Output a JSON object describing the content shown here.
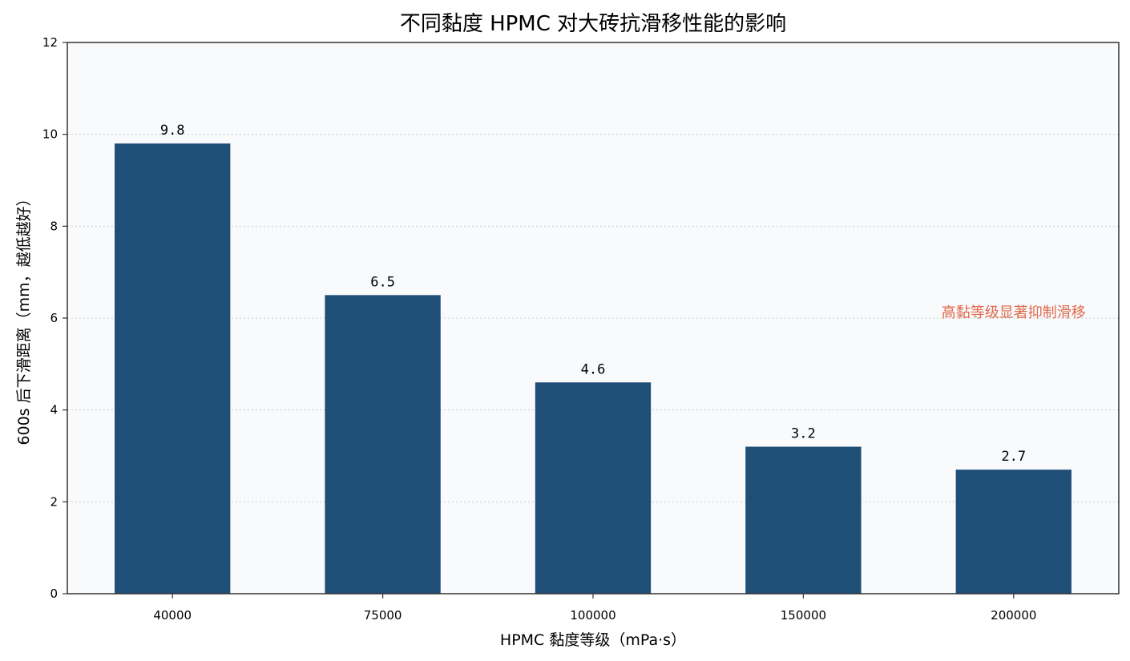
{
  "chart_data": {
    "type": "bar",
    "title": "不同黏度 HPMC 对大砖抗滑移性能的影响",
    "xlabel": "HPMC 黏度等级（mPa·s）",
    "ylabel": "600s 后下滑距离（mm，越低越好）",
    "categories": [
      "40000",
      "75000",
      "100000",
      "150000",
      "200000"
    ],
    "values": [
      9.8,
      6.5,
      4.6,
      3.2,
      2.7
    ],
    "value_labels": [
      "9.8",
      "6.5",
      "4.6",
      "3.2",
      "2.7"
    ],
    "ylim": [
      0,
      12
    ],
    "yticks": [
      0,
      2,
      4,
      6,
      8,
      10,
      12
    ],
    "grid": "horizontal dotted",
    "annotation": {
      "text": "高黏等级显著抑制滑移",
      "x_category_index": 4,
      "y": 6.0,
      "color": "#e06a4c"
    },
    "colors": {
      "bar": "#1f4e77",
      "plot_background": "#f8fafc",
      "grid": "#cccccc",
      "axis": "#333333"
    }
  }
}
